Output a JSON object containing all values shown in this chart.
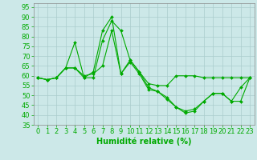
{
  "background_color": "#cce8e8",
  "grid_color": "#aacccc",
  "line_color": "#00aa00",
  "xlabel": "Humidité relative (%)",
  "xlabel_fontsize": 7,
  "tick_fontsize": 6,
  "xlim": [
    -0.5,
    23.5
  ],
  "ylim": [
    35,
    97
  ],
  "yticks": [
    35,
    40,
    45,
    50,
    55,
    60,
    65,
    70,
    75,
    80,
    85,
    90,
    95
  ],
  "xticks": [
    0,
    1,
    2,
    3,
    4,
    5,
    6,
    7,
    8,
    9,
    10,
    11,
    12,
    13,
    14,
    15,
    16,
    17,
    18,
    19,
    20,
    21,
    22,
    23
  ],
  "series": [
    [
      59,
      58,
      59,
      64,
      64,
      59,
      59,
      78,
      88,
      83,
      68,
      62,
      56,
      55,
      55,
      60,
      60,
      60,
      59,
      59,
      59,
      59,
      59,
      59
    ],
    [
      59,
      58,
      59,
      64,
      77,
      59,
      62,
      83,
      90,
      61,
      68,
      62,
      54,
      52,
      49,
      44,
      42,
      43,
      47,
      51,
      51,
      47,
      54,
      59
    ],
    [
      59,
      58,
      59,
      64,
      64,
      60,
      61,
      65,
      83,
      61,
      67,
      61,
      53,
      52,
      48,
      44,
      41,
      42,
      47,
      51,
      51,
      47,
      47,
      59
    ]
  ]
}
